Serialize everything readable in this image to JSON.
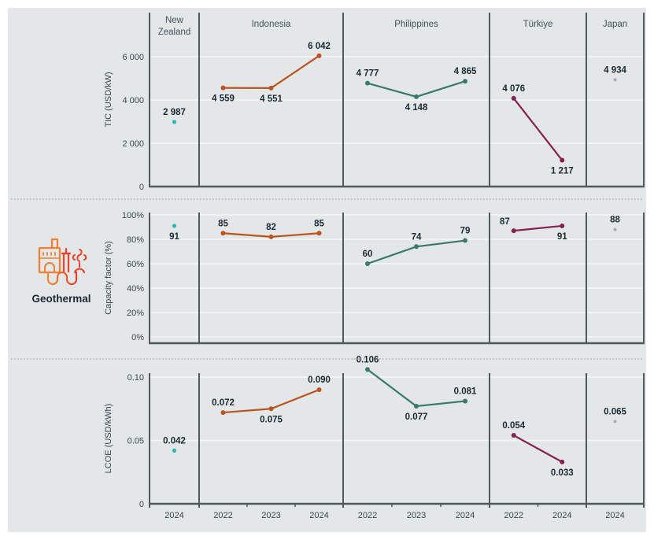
{
  "page": {
    "background": "#ffffff",
    "panel_bg": "#e3e7e7"
  },
  "sidebar": {
    "label": "Geothermal",
    "icon": "geothermal-plant-icon"
  },
  "colors": {
    "accent_teal": "#2ab7b2",
    "accent_orange": "#bb5420",
    "accent_green": "#3a7a66",
    "accent_purple": "#852054",
    "accent_gray": "#a6abab",
    "label_dark": "#1b2a36",
    "axis_text": "#3c4850",
    "header_text": "#44525c",
    "divider": "#52585a",
    "grid": "#f6f8f8",
    "separator": "#97a1a1"
  },
  "chart_data": {
    "type": "line",
    "title": "",
    "legend_position": "left",
    "grid": true,
    "groups": [
      {
        "name": "New Zealand",
        "header_lines": [
          "New",
          "Zealand"
        ],
        "color_key": "accent_teal",
        "years": [
          "2024"
        ]
      },
      {
        "name": "Indonesia",
        "header_lines": [
          "Indonesia"
        ],
        "color_key": "accent_orange",
        "years": [
          "2022",
          "2023",
          "2024"
        ]
      },
      {
        "name": "Philippines",
        "header_lines": [
          "Philippines"
        ],
        "color_key": "accent_green",
        "years": [
          "2022",
          "2023",
          "2024"
        ]
      },
      {
        "name": "Türkiye",
        "header_lines": [
          "Türkiye"
        ],
        "color_key": "accent_purple",
        "years": [
          "2022",
          "2024"
        ]
      },
      {
        "name": "Japan",
        "header_lines": [
          "Japan"
        ],
        "color_key": "accent_gray",
        "years": [
          "2024"
        ]
      }
    ],
    "rows": [
      {
        "id": "tic",
        "ylabel": "TIC (USD/kW)",
        "ylim": [
          0,
          6600
        ],
        "ticks": [
          {
            "value": 0,
            "label": "0"
          },
          {
            "value": 2000,
            "label": "2 000"
          },
          {
            "value": 4000,
            "label": "4 000"
          },
          {
            "value": 6000,
            "label": "6 000"
          }
        ],
        "series": {
          "New Zealand": [
            {
              "year": "2024",
              "value": 2987,
              "label": "2 987",
              "label_pos": "above"
            }
          ],
          "Indonesia": [
            {
              "year": "2022",
              "value": 4559,
              "label": "4 559",
              "label_pos": "below"
            },
            {
              "year": "2023",
              "value": 4551,
              "label": "4 551",
              "label_pos": "below"
            },
            {
              "year": "2024",
              "value": 6042,
              "label": "6 042",
              "label_pos": "above"
            }
          ],
          "Philippines": [
            {
              "year": "2022",
              "value": 4777,
              "label": "4 777",
              "label_pos": "above"
            },
            {
              "year": "2023",
              "value": 4148,
              "label": "4 148",
              "label_pos": "below"
            },
            {
              "year": "2024",
              "value": 4865,
              "label": "4 865",
              "label_pos": "above"
            }
          ],
          "Türkiye": [
            {
              "year": "2022",
              "value": 4076,
              "label": "4 076",
              "label_pos": "above"
            },
            {
              "year": "2024",
              "value": 1217,
              "label": "1 217",
              "label_pos": "below"
            }
          ],
          "Japan": [
            {
              "year": "2024",
              "value": 4934,
              "label": "4 934",
              "label_pos": "above"
            }
          ]
        }
      },
      {
        "id": "capacity-factor",
        "ylabel": "Capacity factor (%)",
        "ylim": [
          0,
          100
        ],
        "ticks": [
          {
            "value": 0,
            "label": "0%"
          },
          {
            "value": 20,
            "label": "20%"
          },
          {
            "value": 40,
            "label": "40%"
          },
          {
            "value": 60,
            "label": "60%"
          },
          {
            "value": 80,
            "label": "80%"
          },
          {
            "value": 100,
            "label": "100%"
          }
        ],
        "series": {
          "New Zealand": [
            {
              "year": "2024",
              "value": 91,
              "label": "91",
              "label_pos": "below"
            }
          ],
          "Indonesia": [
            {
              "year": "2022",
              "value": 85,
              "label": "85",
              "label_pos": "above"
            },
            {
              "year": "2023",
              "value": 82,
              "label": "82",
              "label_pos": "above"
            },
            {
              "year": "2024",
              "value": 85,
              "label": "85",
              "label_pos": "above"
            }
          ],
          "Philippines": [
            {
              "year": "2022",
              "value": 60,
              "label": "60",
              "label_pos": "above"
            },
            {
              "year": "2023",
              "value": 74,
              "label": "74",
              "label_pos": "above"
            },
            {
              "year": "2024",
              "value": 79,
              "label": "79",
              "label_pos": "above"
            }
          ],
          "Türkiye": [
            {
              "year": "2022",
              "value": 87,
              "label": "87",
              "label_pos": "above-left"
            },
            {
              "year": "2024",
              "value": 91,
              "label": "91",
              "label_pos": "below"
            }
          ],
          "Japan": [
            {
              "year": "2024",
              "value": 88,
              "label": "88",
              "label_pos": "above"
            }
          ]
        }
      },
      {
        "id": "lcoe",
        "ylabel": "LCOE (USD/kWh)",
        "ylim": [
          0,
          0.11
        ],
        "ticks": [
          {
            "value": 0,
            "label": "0"
          },
          {
            "value": 0.05,
            "label": "0.05"
          },
          {
            "value": 0.1,
            "label": "0.10"
          }
        ],
        "series": {
          "New Zealand": [
            {
              "year": "2024",
              "value": 0.042,
              "label": "0.042",
              "label_pos": "above"
            }
          ],
          "Indonesia": [
            {
              "year": "2022",
              "value": 0.072,
              "label": "0.072",
              "label_pos": "above"
            },
            {
              "year": "2023",
              "value": 0.075,
              "label": "0.075",
              "label_pos": "below"
            },
            {
              "year": "2024",
              "value": 0.09,
              "label": "0.090",
              "label_pos": "above"
            }
          ],
          "Philippines": [
            {
              "year": "2022",
              "value": 0.106,
              "label": "0.106",
              "label_pos": "above"
            },
            {
              "year": "2023",
              "value": 0.077,
              "label": "0.077",
              "label_pos": "below"
            },
            {
              "year": "2024",
              "value": 0.081,
              "label": "0.081",
              "label_pos": "above"
            }
          ],
          "Türkiye": [
            {
              "year": "2022",
              "value": 0.054,
              "label": "0.054",
              "label_pos": "above"
            },
            {
              "year": "2024",
              "value": 0.033,
              "label": "0.033",
              "label_pos": "below"
            }
          ],
          "Japan": [
            {
              "year": "2024",
              "value": 0.065,
              "label": "0.065",
              "label_pos": "above"
            }
          ]
        }
      }
    ]
  }
}
